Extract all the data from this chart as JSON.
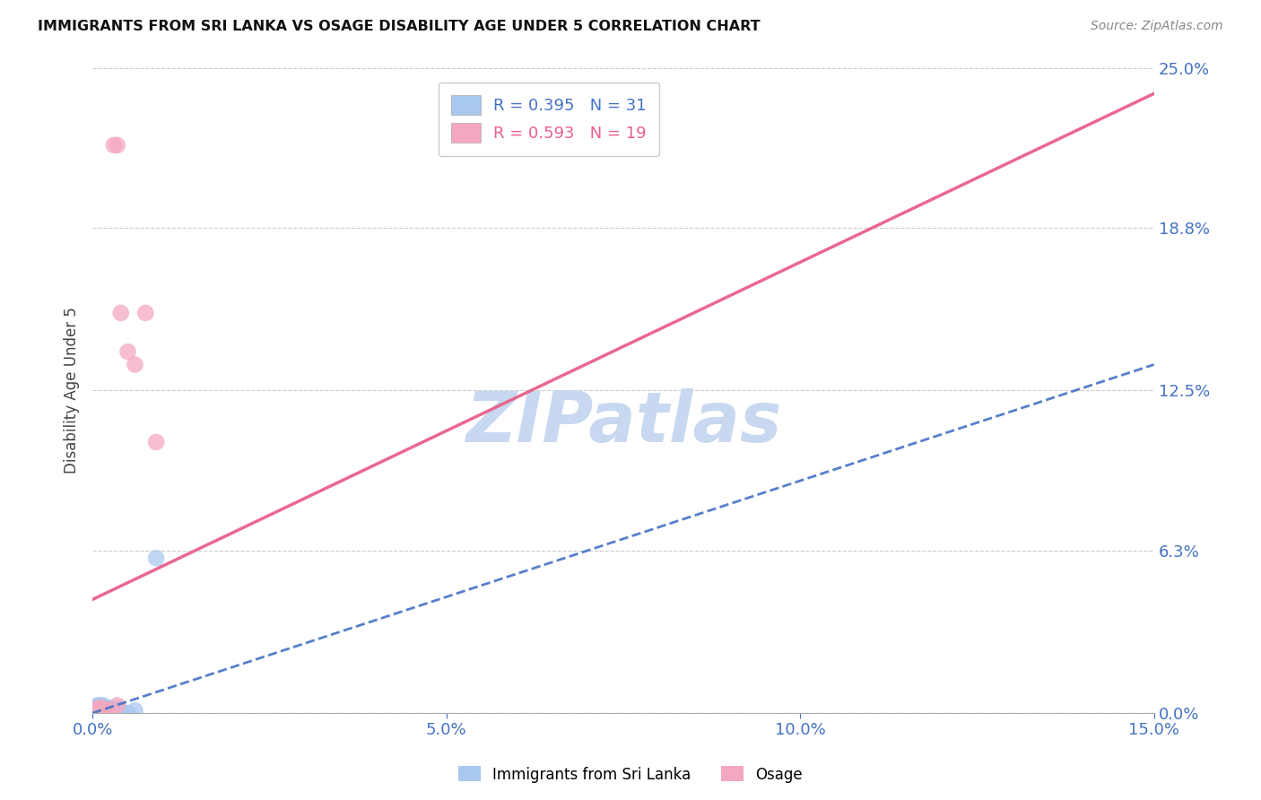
{
  "title": "IMMIGRANTS FROM SRI LANKA VS OSAGE DISABILITY AGE UNDER 5 CORRELATION CHART",
  "source": "Source: ZipAtlas.com",
  "ylabel": "Disability Age Under 5",
  "xlim": [
    0.0,
    0.15
  ],
  "ylim": [
    0.0,
    0.25
  ],
  "xticks": [
    0.0,
    0.05,
    0.1,
    0.15
  ],
  "xtick_labels": [
    "0.0%",
    "5.0%",
    "10.0%",
    "15.0%"
  ],
  "ytick_labels_right": [
    "0.0%",
    "6.3%",
    "12.5%",
    "18.8%",
    "25.0%"
  ],
  "yticks_right": [
    0.0,
    0.063,
    0.125,
    0.188,
    0.25
  ],
  "legend_label1": "Immigrants from Sri Lanka",
  "legend_label2": "Osage",
  "R1": 0.395,
  "N1": 31,
  "R2": 0.593,
  "N2": 19,
  "color_blue": "#A8C8F0",
  "color_pink": "#F4A8C0",
  "line_blue": "#4472C4",
  "line_pink": "#E8608A",
  "watermark_color": "#C8D8F0",
  "sri_lanka_x": [
    0.0002,
    0.0004,
    0.0005,
    0.0006,
    0.0006,
    0.0007,
    0.0008,
    0.0008,
    0.0009,
    0.001,
    0.001,
    0.0012,
    0.0013,
    0.0013,
    0.0014,
    0.0015,
    0.0015,
    0.0016,
    0.0017,
    0.0018,
    0.002,
    0.002,
    0.0022,
    0.0023,
    0.003,
    0.003,
    0.0035,
    0.004,
    0.005,
    0.006,
    0.009
  ],
  "sri_lanka_y": [
    0.002,
    0.0,
    0.001,
    0.002,
    0.0,
    0.003,
    0.001,
    0.002,
    0.0,
    0.001,
    0.003,
    0.0,
    0.001,
    0.002,
    0.0,
    0.001,
    0.003,
    0.002,
    0.0,
    0.001,
    0.002,
    0.0,
    0.001,
    0.002,
    0.001,
    0.0,
    0.002,
    0.001,
    0.0,
    0.001,
    0.06
  ],
  "osage_x": [
    0.0002,
    0.0004,
    0.0006,
    0.0008,
    0.001,
    0.0012,
    0.0014,
    0.0016,
    0.002,
    0.0022,
    0.0025,
    0.003,
    0.0035,
    0.0035,
    0.004,
    0.005,
    0.006,
    0.0075,
    0.009
  ],
  "osage_y": [
    0.0,
    0.001,
    0.0,
    0.002,
    0.001,
    0.0,
    0.002,
    0.001,
    0.0,
    0.001,
    0.0,
    0.22,
    0.22,
    0.003,
    0.155,
    0.14,
    0.135,
    0.155,
    0.105
  ],
  "blue_line_x0": 0.0,
  "blue_line_y0": 0.0,
  "blue_line_x1": 0.15,
  "blue_line_y1": 0.135,
  "pink_line_x0": 0.0,
  "pink_line_y0": 0.044,
  "pink_line_x1": 0.15,
  "pink_line_y1": 0.24
}
